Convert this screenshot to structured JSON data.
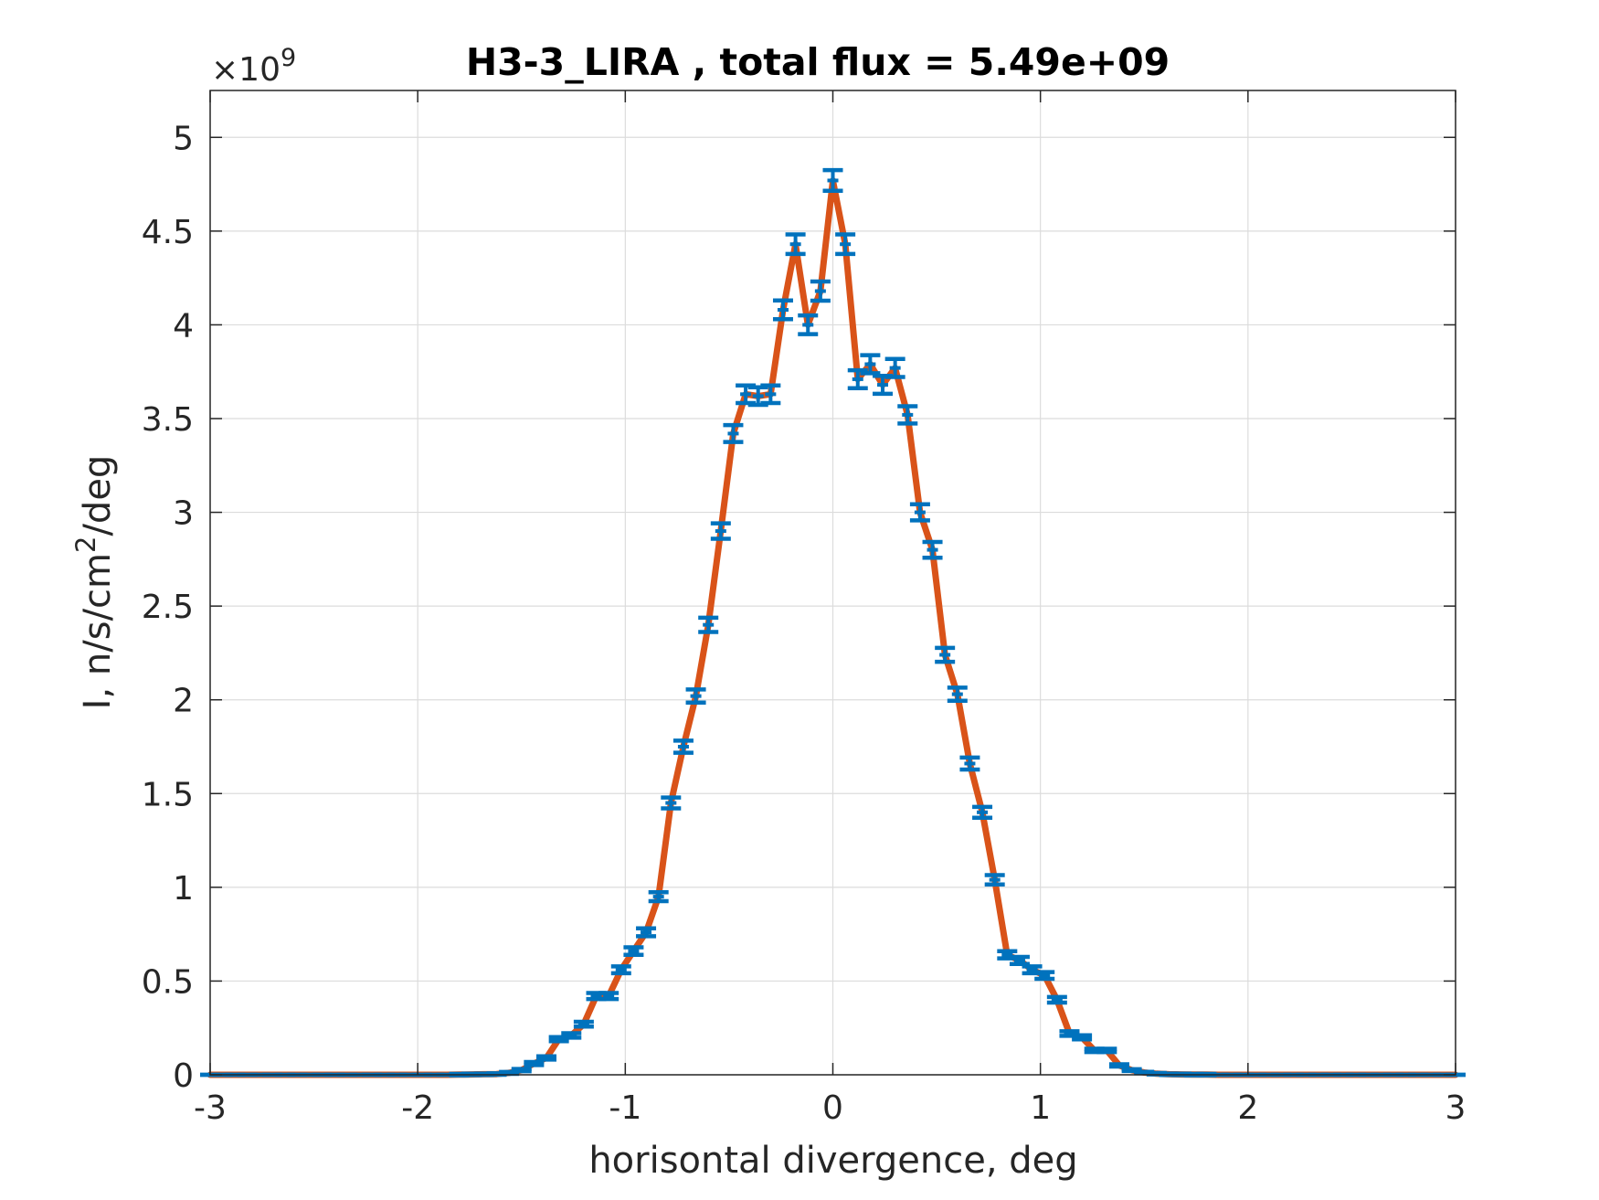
{
  "chart_data": {
    "type": "line",
    "title": "H3-3_LIRA , total flux =  5.49e+09",
    "xlabel": "horisontal divergence, deg",
    "ylabel_main": "I, n/s/cm",
    "ylabel_sup": "2",
    "ylabel_tail": "/deg",
    "y_exponent_prefix": "×10",
    "y_exponent_power": "9",
    "xlim": [
      -3,
      3
    ],
    "ylim": [
      0,
      5.25
    ],
    "xticks": [
      -3,
      -2,
      -1,
      0,
      1,
      2,
      3
    ],
    "xtick_labels": [
      "-3",
      "-2",
      "-1",
      "0",
      "1",
      "2",
      "3"
    ],
    "yticks": [
      0,
      0.5,
      1,
      1.5,
      2,
      2.5,
      3,
      3.5,
      4,
      4.5,
      5
    ],
    "ytick_labels": [
      "0",
      "0.5",
      "1",
      "1.5",
      "2",
      "2.5",
      "3",
      "3.5",
      "4",
      "4.5",
      "5"
    ],
    "grid": true,
    "colors": {
      "line": "#d95319",
      "errorbar": "#0072bd",
      "grid": "#dcdcdc",
      "axes": "#262626"
    },
    "series": [
      {
        "x": [
          -3.0,
          -2.94,
          -2.88,
          -2.82,
          -2.76,
          -2.7,
          -2.64,
          -2.58,
          -2.52,
          -2.46,
          -2.4,
          -2.34,
          -2.28,
          -2.22,
          -2.16,
          -2.1,
          -2.04,
          -1.98,
          -1.92,
          -1.86,
          -1.8,
          -1.74,
          -1.68,
          -1.62,
          -1.56,
          -1.5,
          -1.44,
          -1.38,
          -1.32,
          -1.26,
          -1.2,
          -1.14,
          -1.08,
          -1.02,
          -0.96,
          -0.9,
          -0.84,
          -0.78,
          -0.72,
          -0.66,
          -0.6,
          -0.54,
          -0.48,
          -0.42,
          -0.36,
          -0.3,
          -0.24,
          -0.18,
          -0.12,
          -0.06,
          0.0,
          0.06,
          0.12,
          0.18,
          0.24,
          0.3,
          0.36,
          0.42,
          0.48,
          0.54,
          0.6,
          0.66,
          0.72,
          0.78,
          0.84,
          0.9,
          0.96,
          1.02,
          1.08,
          1.14,
          1.2,
          1.26,
          1.32,
          1.38,
          1.44,
          1.5,
          1.56,
          1.62,
          1.68,
          1.74,
          1.8,
          1.86,
          1.92,
          1.98,
          2.04,
          2.1,
          2.16,
          2.22,
          2.28,
          2.34,
          2.4,
          2.46,
          2.52,
          2.58,
          2.64,
          2.7,
          2.76,
          2.82,
          2.88,
          2.94,
          3.0
        ],
        "y": [
          0,
          0,
          0,
          0,
          0,
          0,
          0,
          0,
          0,
          0,
          0,
          0,
          0,
          0,
          0,
          0,
          0,
          0,
          0,
          0,
          0.001,
          0.002,
          0.003,
          0.004,
          0.01,
          0.025,
          0.06,
          0.09,
          0.19,
          0.21,
          0.27,
          0.42,
          0.42,
          0.56,
          0.66,
          0.76,
          0.95,
          1.45,
          1.75,
          2.02,
          2.4,
          2.9,
          3.42,
          3.63,
          3.62,
          3.63,
          4.08,
          4.43,
          4.0,
          4.18,
          4.77,
          4.43,
          3.71,
          3.79,
          3.68,
          3.77,
          3.52,
          3.0,
          2.8,
          2.24,
          2.03,
          1.66,
          1.4,
          1.04,
          0.64,
          0.61,
          0.56,
          0.53,
          0.4,
          0.22,
          0.2,
          0.13,
          0.13,
          0.05,
          0.025,
          0.012,
          0.006,
          0.003,
          0.002,
          0.001,
          0.001,
          0,
          0,
          0,
          0,
          0,
          0,
          0,
          0,
          0,
          0,
          0,
          0,
          0,
          0,
          0,
          0,
          0,
          0,
          0,
          0
        ],
        "err": [
          0,
          0,
          0,
          0,
          0,
          0,
          0,
          0,
          0,
          0,
          0,
          0,
          0,
          0,
          0,
          0,
          0,
          0,
          0,
          0,
          0.004,
          0.004,
          0.004,
          0.004,
          0.005,
          0.006,
          0.008,
          0.009,
          0.011,
          0.012,
          0.013,
          0.016,
          0.016,
          0.018,
          0.02,
          0.021,
          0.024,
          0.029,
          0.032,
          0.035,
          0.038,
          0.041,
          0.045,
          0.047,
          0.047,
          0.047,
          0.05,
          0.052,
          0.05,
          0.051,
          0.055,
          0.052,
          0.048,
          0.048,
          0.048,
          0.048,
          0.046,
          0.043,
          0.042,
          0.037,
          0.035,
          0.032,
          0.029,
          0.025,
          0.019,
          0.019,
          0.018,
          0.018,
          0.015,
          0.012,
          0.011,
          0.009,
          0.009,
          0.006,
          0.005,
          0.004,
          0.004,
          0.004,
          0.004,
          0.004,
          0.004,
          0,
          0,
          0,
          0,
          0,
          0,
          0,
          0,
          0,
          0,
          0,
          0,
          0,
          0,
          0,
          0,
          0,
          0,
          0,
          0
        ]
      }
    ]
  }
}
